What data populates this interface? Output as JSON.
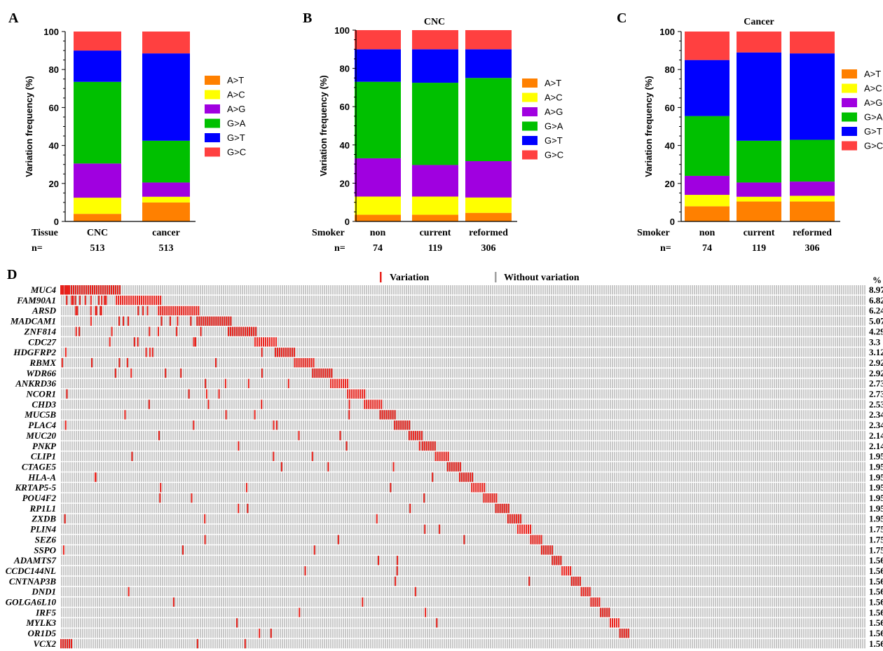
{
  "colors": {
    "A>T": "#FF8000",
    "A>C": "#FFFF00",
    "A>G": "#A000E0",
    "G>A": "#00C000",
    "G>T": "#0000FF",
    "G>C": "#FF4040",
    "variation": "#E8201A",
    "background_bar": "#C8C8C8"
  },
  "chart_data": [
    {
      "panel": "A",
      "type": "bar",
      "stacked": true,
      "title": "",
      "ylabel": "Variation frequency (%)",
      "ylim": [
        0,
        100
      ],
      "yticks": [
        0,
        20,
        40,
        60,
        80,
        100
      ],
      "row_labels": [
        "Tissue",
        "n="
      ],
      "categories": [
        "CNC",
        "cancer"
      ],
      "n": [
        "513",
        "513"
      ],
      "legend": [
        "A>T",
        "A>C",
        "A>G",
        "G>A",
        "G>T",
        "G>C"
      ],
      "series": [
        {
          "name": "A>T",
          "values": [
            4,
            10
          ]
        },
        {
          "name": "A>C",
          "values": [
            8.5,
            3
          ]
        },
        {
          "name": "A>G",
          "values": [
            18,
            7.5
          ]
        },
        {
          "name": "G>A",
          "values": [
            43,
            22
          ]
        },
        {
          "name": "G>T",
          "values": [
            16.5,
            46
          ]
        },
        {
          "name": "G>C",
          "values": [
            10,
            11.5
          ]
        }
      ]
    },
    {
      "panel": "B",
      "type": "bar",
      "stacked": true,
      "title": "CNC",
      "ylabel": "Variation frequency (%)",
      "ylim": [
        0,
        100
      ],
      "yticks": [
        0,
        20,
        40,
        60,
        80,
        100
      ],
      "row_labels": [
        "Smoker",
        "n="
      ],
      "categories": [
        "non",
        "current",
        "reformed"
      ],
      "n": [
        "74",
        "119",
        "306"
      ],
      "legend": [
        "A>T",
        "A>C",
        "A>G",
        "G>A",
        "G>T",
        "G>C"
      ],
      "series": [
        {
          "name": "A>T",
          "values": [
            3.5,
            3.5,
            4.5
          ]
        },
        {
          "name": "A>C",
          "values": [
            9.5,
            9.5,
            8
          ]
        },
        {
          "name": "A>G",
          "values": [
            20,
            16.5,
            19
          ]
        },
        {
          "name": "G>A",
          "values": [
            40,
            43,
            43.5
          ]
        },
        {
          "name": "G>T",
          "values": [
            17,
            17.5,
            15
          ]
        },
        {
          "name": "G>C",
          "values": [
            10,
            10,
            10
          ]
        }
      ]
    },
    {
      "panel": "C",
      "type": "bar",
      "stacked": true,
      "title": "Cancer",
      "ylabel": "Variation frequency (%)",
      "ylim": [
        0,
        100
      ],
      "yticks": [
        0,
        20,
        40,
        60,
        80,
        100
      ],
      "row_labels": [
        "Smoker",
        "n="
      ],
      "categories": [
        "non",
        "current",
        "reformed"
      ],
      "n": [
        "74",
        "119",
        "306"
      ],
      "legend": [
        "A>T",
        "A>C",
        "A>G",
        "G>A",
        "G>T",
        "G>C"
      ],
      "series": [
        {
          "name": "A>T",
          "values": [
            8,
            10.5,
            10.5
          ]
        },
        {
          "name": "A>C",
          "values": [
            6,
            2.5,
            3
          ]
        },
        {
          "name": "A>G",
          "values": [
            10,
            7.5,
            7.5
          ]
        },
        {
          "name": "G>A",
          "values": [
            31.5,
            22,
            22
          ]
        },
        {
          "name": "G>T",
          "values": [
            29.5,
            46.5,
            45.5
          ]
        },
        {
          "name": "G>C",
          "values": [
            15,
            11,
            11.5
          ]
        }
      ]
    },
    {
      "panel": "D",
      "type": "heatmap",
      "title": "",
      "legend": [
        "Variation",
        "Without variation"
      ],
      "percent_header": "%",
      "genes": [
        "MUC4",
        "FAM90A1",
        "ARSD",
        "MADCAM1",
        "ZNF814",
        "CDC27",
        "HDGFRP2",
        "RBMX",
        "WDR66",
        "ANKRD36",
        "NCOR1",
        "CHD3",
        "MUC5B",
        "PLAC4",
        "MUC20",
        "PNKP",
        "CLIP1",
        "CTAGE5",
        "HLA-A",
        "KRTAP5-5",
        "POU4F2",
        "RP1L1",
        "ZXDB",
        "PLIN4",
        "SEZ6",
        "SSPO",
        "ADAMTS7",
        "CCDC144NL",
        "CNTNAP3B",
        "DND1",
        "GOLGA6L10",
        "IRF5",
        "MYLK3",
        "OR1D5",
        "VCX2"
      ],
      "percent_labels": [
        "8.97",
        "6.82",
        "6.24",
        "5.07",
        "4.29",
        "3.3",
        "3.12",
        "2.92",
        "2.92",
        "2.73",
        "2.73",
        "2.53",
        "2.34",
        "2.34",
        "2.14",
        "2.14",
        "1.95",
        "1.95",
        "1.95",
        "1.95",
        "1.95",
        "1.95",
        "1.95",
        "1.75",
        "1.75",
        "1.75",
        "1.56",
        "1.56",
        "1.56",
        "1.56",
        "1.56",
        "1.56",
        "1.56",
        "1.56",
        "1.56"
      ]
    }
  ]
}
